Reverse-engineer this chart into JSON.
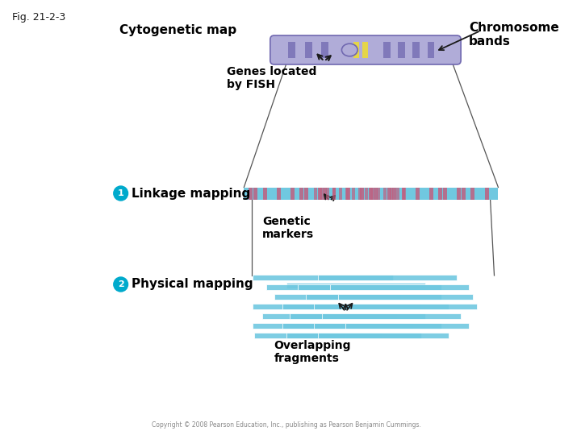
{
  "fig_label": "Fig. 21-2-3",
  "title_cytogenetic": "Cytogenetic map",
  "title_chromosome": "Chromosome\nbands",
  "label_fish": "Genes located\nby FISH",
  "label_genetic_markers": "Genetic\nmarkers",
  "label_linkage": "Linkage mapping",
  "label_physical": "Physical mapping",
  "label_overlapping": "Overlapping\nfragments",
  "copyright": "Copyright © 2008 Pearson Education, Inc., publishing as Pearson Benjamin Cummings.",
  "bg_color": "#ffffff",
  "chrom_color_main": "#b0acd8",
  "chrom_band_dark": "#7068b0",
  "chrom_band_yellow": "#e8d840",
  "linkage_bar_color_light": "#70c8e0",
  "linkage_bar_color_dark": "#c06080",
  "fragment_color": "#70c8e0",
  "circle_color": "#00aacc",
  "arrow_color": "#1a1a1a",
  "text_color": "#1a1a1a",
  "bold_label_color": "#000000"
}
